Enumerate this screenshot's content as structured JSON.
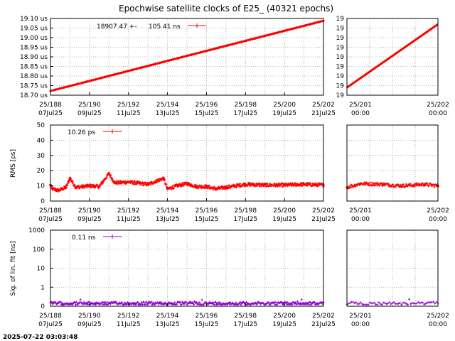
{
  "title": "Epochwise satellite clocks of E25_ (40321 epochs)",
  "timestamp": "2025-07-22 03:03:48",
  "colors": {
    "red": "#ff0000",
    "purple": "#9400d3",
    "grid": "#a0a0a0"
  },
  "x_ticks_main": [
    {
      "top": "25/188",
      "bottom": "07Jul25"
    },
    {
      "top": "25/190",
      "bottom": "09Jul25"
    },
    {
      "top": "25/192",
      "bottom": "11Jul25"
    },
    {
      "top": "25/194",
      "bottom": "13Jul25"
    },
    {
      "top": "25/196",
      "bottom": "15Jul25"
    },
    {
      "top": "25/198",
      "bottom": "17Jul25"
    },
    {
      "top": "25/200",
      "bottom": "19Jul25"
    },
    {
      "top": "25/202",
      "bottom": "21Jul25"
    }
  ],
  "x_ticks_zoom": [
    {
      "top": "25/201",
      "bottom": "00:00"
    },
    {
      "top": "25/202",
      "bottom": "00:00"
    }
  ],
  "chart_data": [
    {
      "type": "line",
      "panel": "clock-main",
      "legend": {
        "text_a": "18907.47 +-",
        "text_b": "105.41 ns"
      },
      "ylabel": "",
      "yticks": [
        "18.70 us",
        "18.75 us",
        "18.80 us",
        "18.85 us",
        "18.90 us",
        "18.95 us",
        "19.00 us",
        "19.05 us",
        "19.10 us"
      ],
      "ylim": [
        18.7,
        19.1
      ],
      "x": [
        188,
        202
      ],
      "y": [
        18.722,
        19.088
      ]
    },
    {
      "type": "line",
      "panel": "clock-zoom",
      "yticks": [
        "19",
        "19",
        "19",
        "19",
        "19",
        "19",
        "19",
        "19",
        "19"
      ],
      "ylim": [
        18.7,
        19.1
      ],
      "x": [
        201,
        202
      ],
      "y": [
        18.74,
        19.07
      ]
    },
    {
      "type": "scatter",
      "panel": "rms-main",
      "legend": {
        "text": "10.26 ps"
      },
      "ylabel": "RMS [ps]",
      "yticks": [
        "0",
        "10",
        "20",
        "30",
        "40",
        "50"
      ],
      "ylim": [
        0,
        50
      ],
      "x_range": [
        188,
        202
      ],
      "baseline": 10.5,
      "features": [
        {
          "x": 188.0,
          "y": 10.5
        },
        {
          "x": 188.1,
          "y": 8.0
        },
        {
          "x": 188.4,
          "y": 7.0
        },
        {
          "x": 188.8,
          "y": 9.0
        },
        {
          "x": 189.0,
          "y": 15.0
        },
        {
          "x": 189.3,
          "y": 9.0
        },
        {
          "x": 190.0,
          "y": 10.0
        },
        {
          "x": 190.5,
          "y": 9.5
        },
        {
          "x": 191.0,
          "y": 18.0
        },
        {
          "x": 191.3,
          "y": 12.0
        },
        {
          "x": 192.0,
          "y": 12.5
        },
        {
          "x": 193.0,
          "y": 11.0
        },
        {
          "x": 193.8,
          "y": 15.0
        },
        {
          "x": 194.0,
          "y": 8.0
        },
        {
          "x": 194.5,
          "y": 10.0
        },
        {
          "x": 195.0,
          "y": 11.5
        },
        {
          "x": 195.5,
          "y": 9.5
        },
        {
          "x": 196.0,
          "y": 9.5
        },
        {
          "x": 196.5,
          "y": 8.0
        },
        {
          "x": 197.0,
          "y": 9.0
        },
        {
          "x": 198.0,
          "y": 11.0
        },
        {
          "x": 199.0,
          "y": 10.5
        },
        {
          "x": 200.0,
          "y": 10.5
        },
        {
          "x": 201.0,
          "y": 11.0
        },
        {
          "x": 202.0,
          "y": 10.5
        }
      ]
    },
    {
      "type": "scatter",
      "panel": "rms-zoom",
      "yticks": [
        "0",
        "10",
        "20",
        "30",
        "40",
        "50"
      ],
      "ylim": [
        0,
        50
      ],
      "x_range": [
        201,
        202
      ],
      "baseline": 10.5,
      "features": [
        {
          "x": 201.0,
          "y": 9.0
        },
        {
          "x": 201.15,
          "y": 11.5
        },
        {
          "x": 201.4,
          "y": 11.0
        },
        {
          "x": 201.6,
          "y": 10.0
        },
        {
          "x": 201.85,
          "y": 11.0
        },
        {
          "x": 202.0,
          "y": 10.0
        }
      ]
    },
    {
      "type": "scatter",
      "panel": "sig-main",
      "legend": {
        "text": "0.11 ns"
      },
      "ylabel": "Sig. of lin. fit [ns]",
      "yscale": "log",
      "yticks": [
        "0",
        "1",
        "10",
        "100",
        "1000"
      ],
      "ylim": [
        0,
        1000
      ],
      "x_range": [
        188,
        202
      ],
      "baseline": 0.11
    },
    {
      "type": "scatter",
      "panel": "sig-zoom",
      "yscale": "log",
      "yticks": [
        "0",
        "1",
        "10",
        "100",
        "1000"
      ],
      "ylim": [
        0,
        1000
      ],
      "x_range": [
        201,
        202
      ],
      "baseline": 0.11
    }
  ]
}
